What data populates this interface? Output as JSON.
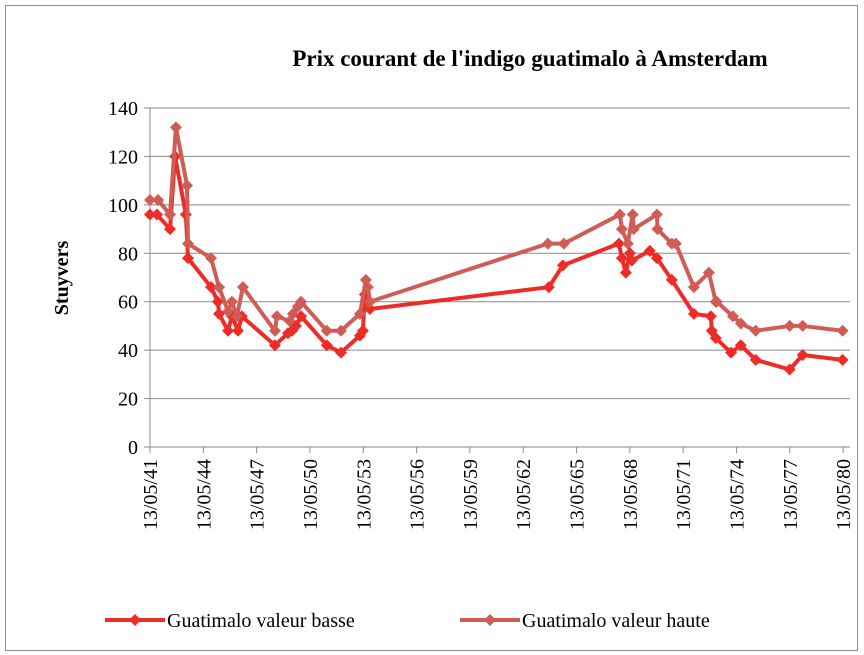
{
  "chart_data": {
    "type": "line",
    "title": "Prix courant de l'indigo guatimalo à Amsterdam",
    "y_label": "Stuyvers",
    "ylim": [
      0,
      140
    ],
    "yticks": [
      0,
      20,
      40,
      60,
      80,
      100,
      120,
      140
    ],
    "xlim": [
      "13/05/41",
      "01/10/80"
    ],
    "xticks": [
      "13/05/41",
      "13/05/44",
      "13/05/47",
      "13/05/50",
      "13/05/53",
      "13/05/56",
      "13/05/59",
      "13/05/62",
      "13/05/65",
      "13/05/68",
      "13/05/71",
      "13/05/74",
      "13/05/77",
      "13/05/80"
    ],
    "grid": true,
    "legend": "bottom",
    "series": [
      {
        "name": "Guatimalo valeur basse",
        "color": "#ee2b26",
        "x": [
          "13/05/41",
          "03/10/41",
          "28/06/42",
          "10/10/42",
          "20/05/43",
          "03/07/43",
          "18/10/44",
          "08/03/45",
          "01/04/45",
          "03/10/45",
          "22/12/45",
          "25/04/46",
          "13/07/46",
          "24/05/48",
          "16/02/49",
          "10/05/49",
          "28/07/49",
          "10/11/49",
          "25/04/51",
          "10/02/52",
          "05/03/53",
          "05/05/53",
          "15/06/53",
          "25/09/53",
          "22/10/63",
          "05/08/64",
          "01/10/67",
          "01/12/67",
          "20/02/68",
          "13/05/68",
          "22/06/68",
          "27/06/69",
          "20/11/69",
          "22/09/70",
          "20/12/71",
          "01/12/72",
          "22/12/72",
          "13/03/73",
          "20/01/74",
          "10/08/74",
          "13/06/75",
          "10/05/77",
          "01/02/78",
          "01/05/80"
        ],
        "values": [
          96,
          96,
          90,
          120,
          96,
          78,
          66,
          60,
          55,
          48,
          54,
          48,
          54,
          42,
          47,
          48,
          50,
          54,
          42,
          39,
          46,
          48,
          63,
          57,
          66,
          75,
          84,
          78,
          72,
          80,
          77,
          81,
          78,
          69,
          55,
          54,
          48,
          45,
          39,
          42,
          36,
          32,
          38,
          36
        ]
      },
      {
        "name": "Guatimalo valeur haute",
        "color": "#cf5d56",
        "x": [
          "13/05/41",
          "25/10/41",
          "28/06/42",
          "28/10/42",
          "13/06/43",
          "03/07/43",
          "18/10/44",
          "01/04/45",
          "03/10/45",
          "22/12/45",
          "03/04/46",
          "05/08/46",
          "24/05/48",
          "03/07/48",
          "25/03/49",
          "28/05/49",
          "05/09/49",
          "10/11/49",
          "25/04/51",
          "10/02/52",
          "05/03/53",
          "05/07/53",
          "15/08/53",
          "25/09/53",
          "01/10/63",
          "25/08/64",
          "20/10/67",
          "01/12/67",
          "01/04/68",
          "10/07/68",
          "01/08/68",
          "20/11/69",
          "01/12/69",
          "22/09/70",
          "13/12/70",
          "20/12/71",
          "22/10/72",
          "13/03/73",
          "03/04/73",
          "28/02/74",
          "10/08/74",
          "13/06/75",
          "10/05/77",
          "01/02/78",
          "01/05/80"
        ],
        "values": [
          102,
          102,
          96,
          132,
          108,
          84,
          78,
          66,
          56,
          60,
          54,
          66,
          48,
          54,
          52,
          55,
          58,
          60,
          48,
          48,
          55,
          69,
          66,
          60,
          84,
          84,
          96,
          90,
          84,
          96,
          90,
          96,
          90,
          84,
          84,
          66,
          72,
          60,
          60,
          54,
          51,
          48,
          50,
          50,
          48
        ]
      }
    ]
  }
}
